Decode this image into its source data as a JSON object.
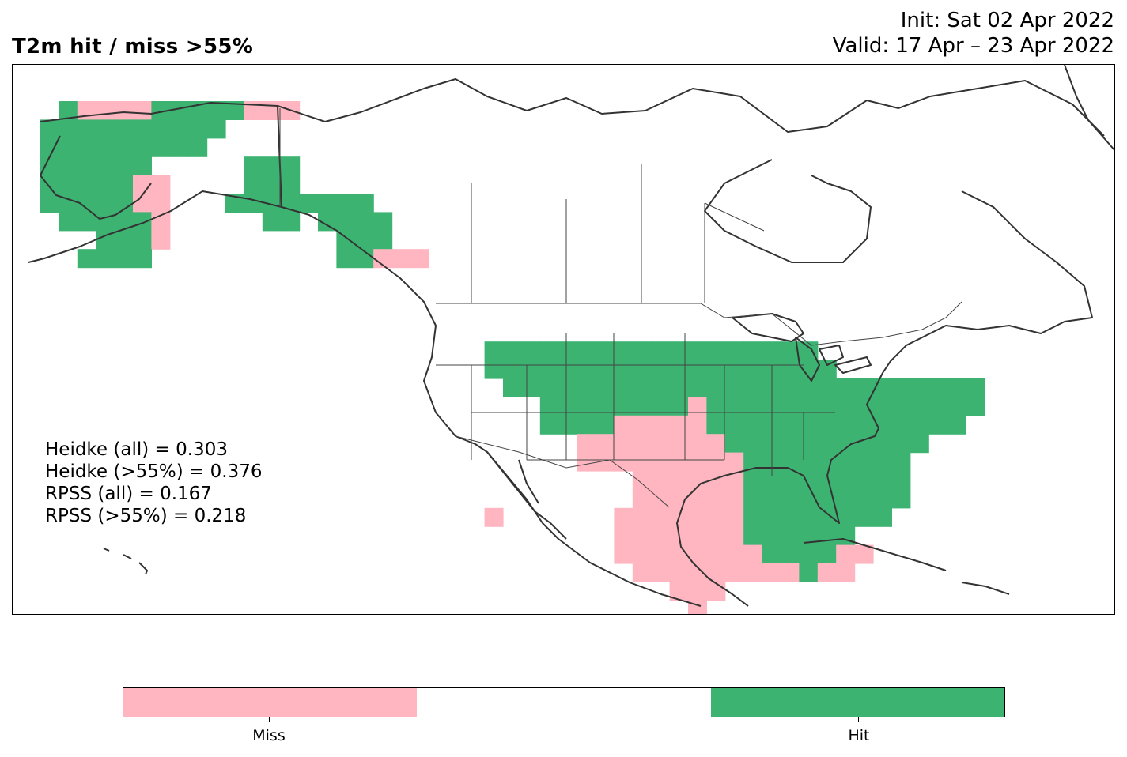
{
  "header": {
    "title": "T2m hit / miss  >55%",
    "init": "Init: Sat 02 Apr 2022",
    "valid": "Valid: 17 Apr – 23 Apr 2022"
  },
  "stats": [
    "Heidke (all) = 0.303",
    "Heidke (>55%) = 0.376",
    "RPSS (all) = 0.167",
    "RPSS (>55%) = 0.218"
  ],
  "colors": {
    "miss": "#ffb6c1",
    "neutral": "#ffffff",
    "hit": "#3cb371",
    "coast": "#333333"
  },
  "colorbar": {
    "categories": [
      "Miss",
      "",
      "Hit"
    ],
    "labels": {
      "miss": "Miss",
      "hit": "Hit"
    }
  }
}
